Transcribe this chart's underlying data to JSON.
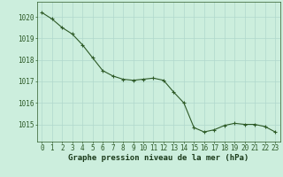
{
  "x": [
    0,
    1,
    2,
    3,
    4,
    5,
    6,
    7,
    8,
    9,
    10,
    11,
    12,
    13,
    14,
    15,
    16,
    17,
    18,
    19,
    20,
    21,
    22,
    23
  ],
  "y": [
    1020.2,
    1019.9,
    1019.5,
    1019.2,
    1018.7,
    1018.1,
    1017.5,
    1017.25,
    1017.1,
    1017.05,
    1017.1,
    1017.15,
    1017.05,
    1016.5,
    1016.0,
    1014.85,
    1014.65,
    1014.75,
    1014.95,
    1015.05,
    1015.0,
    1015.0,
    1014.9,
    1014.65
  ],
  "line_color": "#2d5a27",
  "marker": "+",
  "background_color": "#cceedd",
  "grid_color": "#b0d8cc",
  "xlabel": "Graphe pression niveau de la mer (hPa)",
  "xlabel_color": "#1a3a1a",
  "ylabel_ticks": [
    1015,
    1016,
    1017,
    1018,
    1019,
    1020
  ],
  "xtick_labels": [
    "0",
    "1",
    "2",
    "3",
    "4",
    "5",
    "6",
    "7",
    "8",
    "9",
    "10",
    "11",
    "12",
    "13",
    "14",
    "15",
    "16",
    "17",
    "18",
    "19",
    "20",
    "21",
    "22",
    "23"
  ],
  "ylim": [
    1014.2,
    1020.7
  ],
  "xlim": [
    -0.5,
    23.5
  ],
  "tick_color": "#2d5a27",
  "tick_fontsize": 5.5,
  "xlabel_fontsize": 6.5,
  "linewidth": 0.8,
  "markersize": 3.0,
  "fig_width": 3.2,
  "fig_height": 2.0,
  "dpi": 100
}
